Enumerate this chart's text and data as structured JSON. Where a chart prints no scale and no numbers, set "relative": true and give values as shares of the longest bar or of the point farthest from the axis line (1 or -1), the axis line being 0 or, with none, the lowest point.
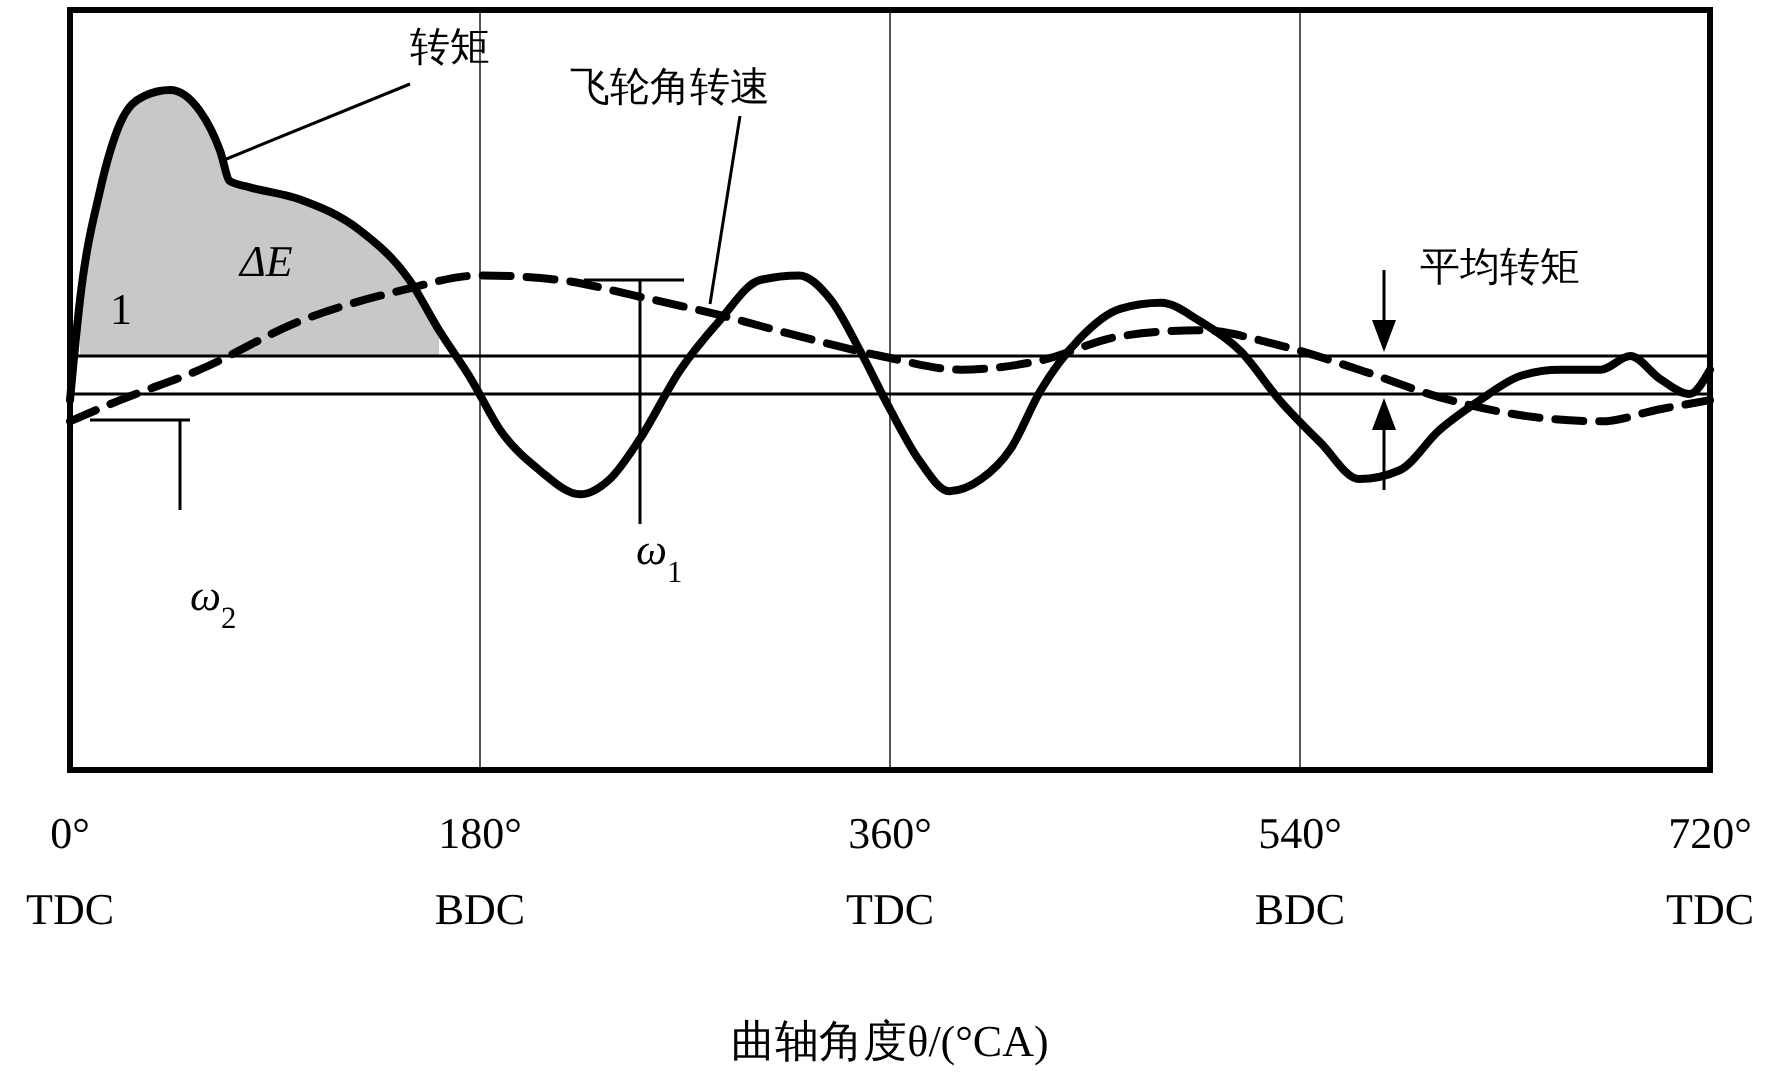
{
  "chart_data": {
    "type": "line",
    "relative": true,
    "xlabel": "曲轴角度θ/(°CA)",
    "xlim": [
      0,
      720
    ],
    "xticks": [
      {
        "value": 0,
        "label": "0°\nTDC"
      },
      {
        "value": 180,
        "label": "180°\nBDC"
      },
      {
        "value": 360,
        "label": "360°\nTDC"
      },
      {
        "value": 540,
        "label": "540°\nBDC"
      },
      {
        "value": 720,
        "label": "720°\nTDC"
      }
    ],
    "grid": "x",
    "series": [
      {
        "name": "转矩",
        "color": "#000000",
        "line_style": "solid",
        "x": [
          0,
          4.4,
          13.2,
          22,
          32.5,
          43.9,
          57.1,
          65.9,
          70.2,
          79,
          101,
          127,
          149,
          162,
          176,
          189,
          206,
          224,
          237,
          250,
          268,
          285,
          303,
          320,
          334,
          347,
          360,
          373,
          386,
          400,
          413,
          426,
          443,
          461,
          479,
          496,
          514,
          531,
          549,
          566,
          584,
          601,
          619,
          637,
          654,
          672,
          685,
          698,
          711,
          720
        ],
        "values": [
          -0.02,
          0.31,
          0.67,
          0.89,
          0.98,
          1,
          0.93,
          0.8,
          0.7,
          0.68,
          0.64,
          0.54,
          0.375,
          0.21,
          0.05,
          -0.12,
          -0.25,
          -0.33,
          -0.28,
          -0.15,
          0.08,
          0.24,
          0.375,
          0.39,
          0.31,
          0.14,
          -0.05,
          -0.22,
          -0.32,
          -0.28,
          -0.18,
          0.01,
          0.18,
          0.28,
          0.3,
          0.24,
          0.14,
          -0.02,
          -0.16,
          -0.28,
          -0.25,
          -0.12,
          -0.02,
          0.06,
          0.08,
          0.08,
          0.125,
          0.05,
          0,
          0.08
        ]
      },
      {
        "name": "飞轮角转速",
        "color": "#000000",
        "line_style": "dashed",
        "x": [
          0,
          22,
          57,
          101,
          145,
          180,
          215,
          250,
          285,
          320,
          356,
          391,
          426,
          461,
          496,
          531,
          566,
          601,
          637,
          672,
          698,
          720
        ],
        "values": [
          -0.09,
          -0.02,
          0.08,
          0.24,
          0.34,
          0.39,
          0.375,
          0.32,
          0.26,
          0.19,
          0.125,
          0.08,
          0.11,
          0.19,
          0.21,
          0.16,
          0.08,
          -0.01,
          -0.07,
          -0.09,
          -0.05,
          -0.02
        ]
      }
    ],
    "ref_lines": [
      {
        "axis": "y",
        "value": 0.125,
        "label": "平均转矩",
        "color": "#000000"
      }
    ],
    "annotations": [
      "ΔE",
      "1",
      "ω$_{1}$",
      "ω$_{2}$"
    ]
  }
}
